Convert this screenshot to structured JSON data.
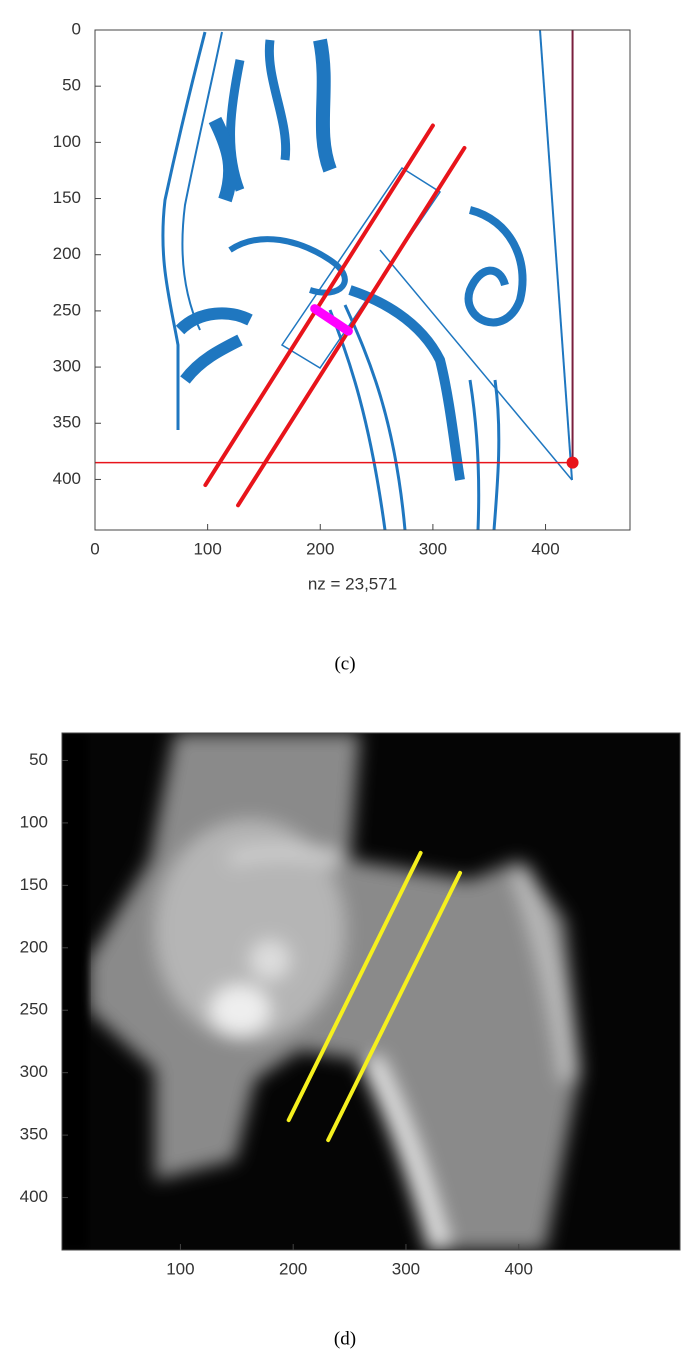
{
  "chart_data": [
    {
      "type": "spy",
      "caption": "(c)",
      "xlabel": "nz = 23,571",
      "xlim": [
        0,
        475
      ],
      "ylim": [
        0,
        445
      ],
      "y_reversed": true,
      "xticks": [
        0,
        100,
        200,
        300,
        400
      ],
      "yticks": [
        0,
        50,
        100,
        150,
        200,
        250,
        300,
        350,
        400
      ],
      "series": [
        {
          "color": "#e8141b",
          "line_width": 4,
          "x": [
            98,
            300
          ],
          "y": [
            405,
            85
          ]
        },
        {
          "color": "#e8141b",
          "line_width": 4,
          "x": [
            127,
            328
          ],
          "y": [
            423,
            105
          ]
        },
        {
          "color": "#ff00ff",
          "line_width": 9,
          "x": [
            195,
            225
          ],
          "y": [
            248,
            268
          ]
        },
        {
          "color": "#e8141b",
          "line_width": 1.5,
          "x": [
            0,
            420
          ],
          "y": [
            385,
            385
          ]
        },
        {
          "color": "#7a1f3d",
          "line_width": 2,
          "x": [
            424,
            424
          ],
          "y": [
            0,
            385
          ]
        },
        {
          "color": "#e8141b",
          "marker": true,
          "x": [
            424
          ],
          "y": [
            385
          ]
        }
      ]
    },
    {
      "type": "image",
      "caption": "(d)",
      "xlim": [
        -5,
        543
      ],
      "ylim": [
        28,
        442
      ],
      "y_reversed": true,
      "xticks": [
        100,
        200,
        300,
        400
      ],
      "yticks": [
        50,
        100,
        150,
        200,
        250,
        300,
        350,
        400
      ],
      "series": [
        {
          "color": "#f5f01e",
          "line_width": 4,
          "x": [
            196,
            313
          ],
          "y": [
            338,
            124
          ]
        },
        {
          "color": "#f5f01e",
          "line_width": 4,
          "x": [
            231,
            348
          ],
          "y": [
            354,
            140
          ]
        }
      ]
    }
  ]
}
